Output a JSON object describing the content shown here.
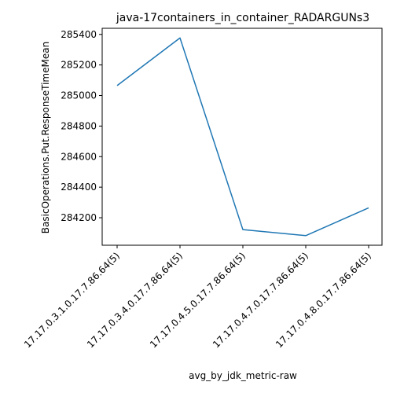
{
  "chart_data": {
    "type": "line",
    "title": "java-17containers_in_container_RADARGUNs3",
    "xlabel": "avg_by_jdk_metric-raw",
    "ylabel": "BasicOperations.Put.ResponseTimeMean",
    "categories": [
      "17.17.0.3.1.0.17.7.86.64(5)",
      "17.17.0.3.4.0.17.7.86.64(5)",
      "17.17.0.4.5.0.17.7.86.64(5)",
      "17.17.0.4.7.0.17.7.86.64(5)",
      "17.17.0.4.8.0.17.7.86.64(5)"
    ],
    "series": [
      {
        "values": [
          285065,
          285377,
          284122,
          284083,
          284265
        ],
        "color": "#1f77b4"
      }
    ],
    "yticks": [
      284200,
      284400,
      284600,
      284800,
      285000,
      285200,
      285400
    ],
    "ylim": [
      284020,
      285440
    ],
    "grid": false,
    "legend": "none"
  }
}
